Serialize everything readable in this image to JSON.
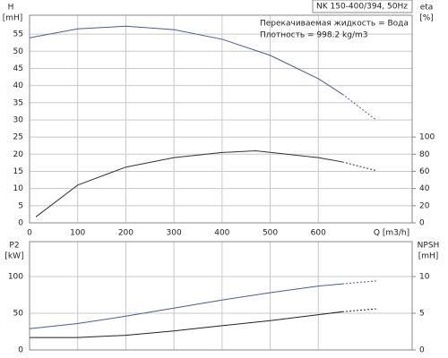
{
  "chart_data": [
    {
      "type": "line",
      "title": "NK 150-400/394, 50Hz",
      "annotations": [
        "Перекачиваемая жидкость = Вода",
        "Плотность = 998.2 kg/m3"
      ],
      "y_label": [
        "H",
        "[mH]"
      ],
      "y2_label": [
        "eta",
        "[%]"
      ],
      "x_label": "Q [m3/h]",
      "xlim": [
        0,
        795
      ],
      "xticks": [
        0,
        100,
        200,
        300,
        400,
        500,
        600
      ],
      "ylim": [
        0,
        60.5
      ],
      "yticks": [
        0,
        5,
        10,
        15,
        20,
        25,
        30,
        35,
        40,
        45,
        50,
        55
      ],
      "y2lim": [
        0,
        242
      ],
      "y2ticks": [
        0,
        20,
        40,
        60,
        80,
        100
      ],
      "grid": true,
      "series": [
        {
          "color": "#4a5a9a",
          "dash_last_segment": true,
          "x": [
            0,
            100,
            200,
            300,
            400,
            500,
            600,
            650,
            720
          ],
          "values": [
            53.9,
            56.5,
            57.3,
            56.3,
            53.5,
            48.8,
            42,
            37.5,
            30
          ]
        },
        {
          "color": "#333333",
          "axis": "y2",
          "dash_last_segment": true,
          "x": [
            13,
            100,
            200,
            300,
            400,
            470,
            600,
            650,
            720
          ],
          "values": [
            7,
            44,
            65,
            76,
            82,
            84,
            76,
            71,
            61
          ]
        }
      ]
    },
    {
      "type": "line",
      "y_label": [
        "P2",
        "[kW]"
      ],
      "y2_label": [
        "NPSH",
        "[mH]"
      ],
      "xlim": [
        0,
        795
      ],
      "ylim": [
        0,
        147.5
      ],
      "yticks": [
        0,
        50,
        100
      ],
      "y2lim": [
        0,
        14.75
      ],
      "y2ticks": [
        0,
        5,
        10
      ],
      "grid": true,
      "series": [
        {
          "color": "#4a5a9a",
          "dash_last_segment": true,
          "x": [
            0,
            100,
            200,
            300,
            400,
            500,
            600,
            650,
            720
          ],
          "values": [
            29,
            36,
            46,
            57,
            68,
            78,
            87,
            90,
            94
          ]
        },
        {
          "color": "#222222",
          "axis": "y2",
          "dash_last_segment": true,
          "x": [
            0,
            100,
            200,
            300,
            400,
            500,
            600,
            650,
            720
          ],
          "values": [
            1.7,
            1.7,
            2.0,
            2.6,
            3.3,
            4.0,
            4.8,
            5.2,
            5.6
          ]
        }
      ]
    }
  ]
}
